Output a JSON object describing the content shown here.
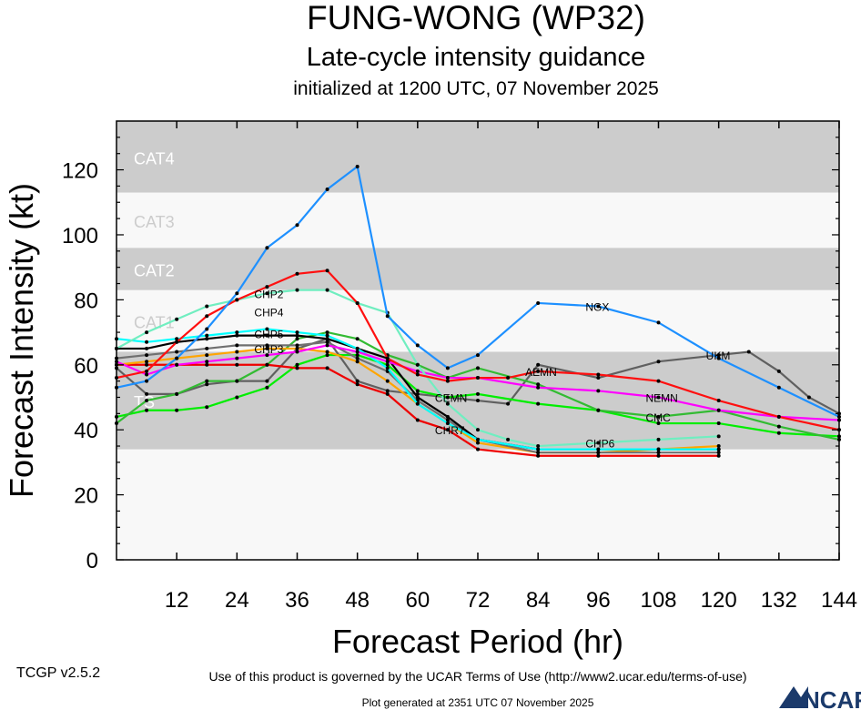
{
  "chart_data": {
    "type": "line",
    "title": "FUNG-WONG (WP32)",
    "subtitle": "Late-cycle intensity guidance",
    "init_text": "initialized at 1200 UTC, 07 November 2025",
    "xlabel": "Forecast Period (hr)",
    "ylabel": "Forecast Intensity (kt)",
    "xlim": [
      0,
      144
    ],
    "ylim": [
      0,
      135
    ],
    "xticks": [
      12,
      24,
      36,
      48,
      60,
      72,
      84,
      96,
      108,
      120,
      132,
      144
    ],
    "yticks": [
      0,
      20,
      40,
      60,
      80,
      100,
      120
    ],
    "bands": [
      {
        "label": "TS",
        "min": 34,
        "max": 64,
        "shaded": true
      },
      {
        "label": "CAT1",
        "min": 64,
        "max": 83,
        "shaded": false
      },
      {
        "label": "CAT2",
        "min": 83,
        "max": 96,
        "shaded": true
      },
      {
        "label": "CAT3",
        "min": 96,
        "max": 113,
        "shaded": false
      },
      {
        "label": "CAT4",
        "min": 113,
        "max": 135,
        "shaded": true
      }
    ],
    "series": [
      {
        "name": "UKM",
        "color": "#606060",
        "label_at": 17,
        "x": [
          0,
          6,
          12,
          18,
          24,
          30,
          36,
          42,
          48,
          54,
          60,
          66,
          72,
          78,
          84,
          96,
          108,
          120,
          126,
          132,
          138,
          144
        ],
        "values": [
          59,
          51,
          51,
          54,
          55,
          55,
          65,
          68,
          55,
          52,
          51,
          50,
          49,
          48,
          60,
          56,
          61,
          63,
          64,
          58,
          50,
          45
        ]
      },
      {
        "name": "CEMN",
        "color": "#00ee00",
        "label_at": 11,
        "x": [
          0,
          6,
          12,
          18,
          24,
          30,
          36,
          42,
          48,
          54,
          60,
          66,
          72,
          84,
          96,
          108,
          120,
          132,
          144
        ],
        "values": [
          44,
          46,
          46,
          47,
          50,
          53,
          60,
          63,
          63,
          60,
          52,
          50,
          51,
          48,
          46,
          42,
          42,
          39,
          38
        ]
      },
      {
        "name": "CMC",
        "color": "#33bb33",
        "label_at": 15,
        "x": [
          0,
          6,
          12,
          18,
          24,
          30,
          36,
          42,
          48,
          54,
          60,
          66,
          72,
          84,
          96,
          108,
          120,
          132,
          144
        ],
        "values": [
          42,
          49,
          51,
          55,
          55,
          60,
          68,
          70,
          68,
          63,
          60,
          56,
          59,
          54,
          46,
          44,
          46,
          41,
          37
        ]
      },
      {
        "name": "CHR7",
        "color": "#ee0000",
        "label_at": 11,
        "x": [
          0,
          6,
          12,
          18,
          24,
          30,
          36,
          42,
          48,
          54,
          60,
          66,
          72,
          84,
          96,
          108,
          120
        ],
        "values": [
          60,
          60,
          60,
          60,
          60,
          60,
          59,
          59,
          54,
          51,
          43,
          40,
          34,
          32,
          32,
          32,
          32
        ]
      },
      {
        "name": "CHP3",
        "color": "#ffa500",
        "label_at": 5,
        "x": [
          0,
          6,
          12,
          18,
          24,
          30,
          36,
          42,
          48,
          54,
          60,
          66,
          72,
          84,
          96,
          108,
          120
        ],
        "values": [
          60,
          61,
          62,
          63,
          64,
          65,
          65,
          64,
          61,
          55,
          48,
          42,
          36,
          33,
          33,
          34,
          35
        ]
      },
      {
        "name": "CHP5",
        "color": "#707070",
        "label_at": 5,
        "x": [
          0,
          6,
          12,
          18,
          24,
          30,
          36,
          42,
          48,
          54,
          60,
          66,
          72,
          84,
          96,
          108,
          120
        ],
        "values": [
          62,
          63,
          64,
          65,
          66,
          66,
          66,
          67,
          62,
          58,
          49,
          43,
          37,
          33,
          33,
          33,
          33
        ]
      },
      {
        "name": "CHP4",
        "color": "#000000",
        "label_at": 5,
        "x": [
          0,
          6,
          12,
          18,
          24,
          30,
          36,
          42,
          48,
          54,
          60,
          66,
          72,
          84,
          96,
          108,
          120
        ],
        "values": [
          65,
          65,
          67,
          68,
          69,
          69,
          69,
          68,
          65,
          62,
          50,
          44,
          37,
          34,
          34,
          34,
          34
        ]
      },
      {
        "name": "CHP2",
        "color": "#00ffff",
        "label_at": 5,
        "x": [
          0,
          6,
          12,
          18,
          24,
          30,
          36,
          42,
          48,
          54,
          60,
          66,
          72,
          84,
          96,
          108,
          120
        ],
        "values": [
          68,
          67,
          68,
          69,
          70,
          71,
          70,
          69,
          65,
          59,
          48,
          42,
          37,
          34,
          34,
          34,
          34
        ]
      },
      {
        "name": "NEMN",
        "color": "#ff00ff",
        "label_at": 15,
        "x": [
          0,
          6,
          12,
          18,
          24,
          30,
          36,
          42,
          48,
          54,
          60,
          66,
          72,
          84,
          96,
          108,
          120,
          132,
          144
        ],
        "values": [
          61,
          57,
          60,
          61,
          62,
          63,
          64,
          66,
          64,
          61,
          58,
          56,
          56,
          53,
          52,
          50,
          46,
          44,
          43
        ]
      },
      {
        "name": "CHP6",
        "color": "#70eec0",
        "label_at": 15,
        "x": [
          0,
          6,
          12,
          18,
          24,
          30,
          36,
          42,
          48,
          54,
          60,
          66,
          72,
          78,
          84,
          96,
          108,
          120
        ],
        "values": [
          65,
          70,
          74,
          78,
          80,
          82,
          83,
          83,
          79,
          76,
          60,
          48,
          40,
          37,
          35,
          36,
          37,
          38
        ]
      },
      {
        "name": "AEMN",
        "color": "#ff1010",
        "label_at": 14,
        "x": [
          0,
          6,
          12,
          18,
          24,
          30,
          36,
          42,
          48,
          54,
          60,
          66,
          72,
          78,
          84,
          96,
          108,
          120,
          132,
          144
        ],
        "values": [
          56,
          58,
          67,
          75,
          80,
          84,
          88,
          89,
          79,
          62,
          57,
          55,
          56,
          56,
          58,
          57,
          55,
          49,
          44,
          40
        ]
      },
      {
        "name": "NGX",
        "color": "#1e90ff",
        "label_at": 14,
        "x": [
          0,
          6,
          12,
          18,
          24,
          30,
          36,
          42,
          48,
          54,
          60,
          66,
          72,
          84,
          96,
          108,
          120,
          132,
          144
        ],
        "values": [
          53,
          55,
          62,
          71,
          82,
          96,
          103,
          114,
          121,
          75,
          66,
          59,
          63,
          79,
          78,
          73,
          62,
          53,
          44
        ]
      }
    ]
  },
  "footer": {
    "version": "TCGP v2.5.2",
    "terms": "Use of this product is governed by the UCAR Terms of Use (http://www2.ucar.edu/terms-of-use)",
    "generated": "Plot generated at 2351 UTC   07 November 2025",
    "logo": "NCAR"
  }
}
